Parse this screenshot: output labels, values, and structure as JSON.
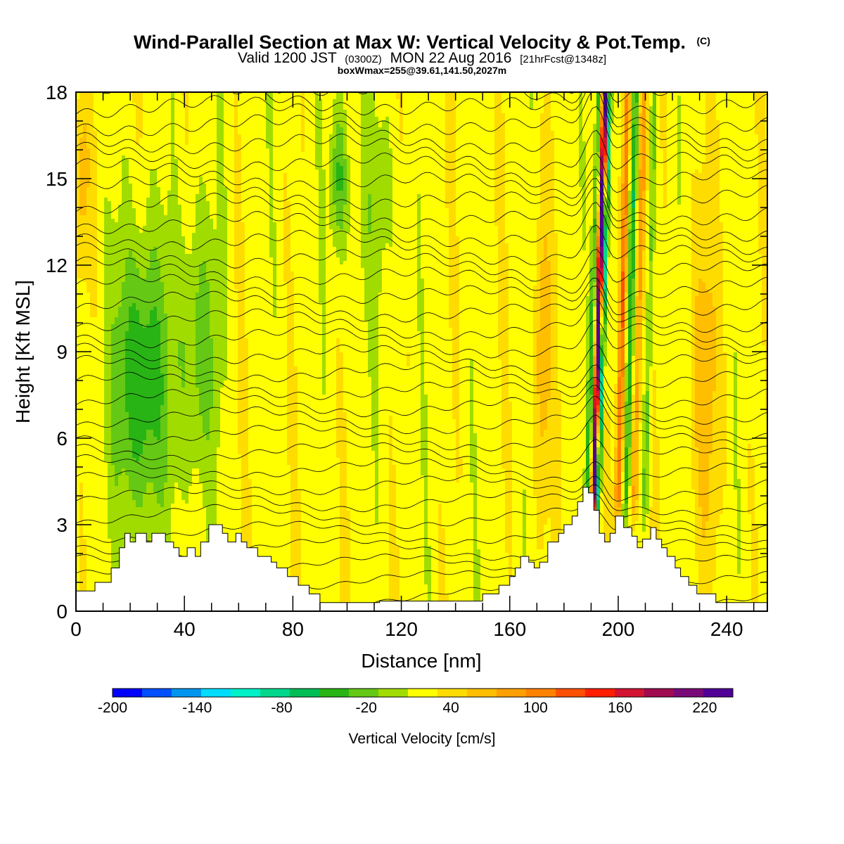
{
  "chart_data": {
    "type": "heatmap",
    "title": {
      "main": "Wind-Parallel Section at Max W: Vertical Velocity & Pot.Temp.",
      "copyright": "(C)",
      "valid_prefix": "Valid 1200 JST",
      "valid_zulu": "(0300Z)",
      "valid_date": "MON 22 Aug 2016",
      "forecast": "[21hrFcst@1348z]",
      "box": "boxWmax=255@39.61,141.50,2027m"
    },
    "xlabel": "Distance [nm]",
    "ylabel": "Height [Kft MSL]",
    "xlim": [
      0,
      255
    ],
    "ylim": [
      0,
      18
    ],
    "x_ticks": [
      "0",
      "40",
      "80",
      "120",
      "160",
      "200",
      "240"
    ],
    "x_tick_values": [
      0,
      40,
      80,
      120,
      160,
      200,
      240
    ],
    "y_ticks": [
      "0",
      "3",
      "6",
      "9",
      "12",
      "15",
      "18"
    ],
    "y_tick_values": [
      0,
      3,
      6,
      9,
      12,
      15,
      18
    ],
    "colorbar": {
      "title": "Vertical Velocity [cm/s]",
      "labels": [
        "-200",
        "-140",
        "-80",
        "-20",
        "40",
        "100",
        "160",
        "220"
      ],
      "label_values": [
        -200,
        -140,
        -80,
        -20,
        40,
        100,
        160,
        220
      ],
      "min": -200,
      "max": 220,
      "step": 20,
      "colors": [
        "#0000ff",
        "#0050ff",
        "#0096f0",
        "#00dcff",
        "#00f0c8",
        "#00d78c",
        "#00be55",
        "#28b414",
        "#64c814",
        "#a0dc00",
        "#ffff00",
        "#ffdc00",
        "#ffbe00",
        "#ffa000",
        "#ff8200",
        "#ff5000",
        "#ff1e00",
        "#d21432",
        "#a00a50",
        "#780a78",
        "#500096"
      ]
    },
    "terrain_kft": [
      [
        0,
        0.7
      ],
      [
        7,
        0.7
      ],
      [
        7,
        1.0
      ],
      [
        13,
        1.0
      ],
      [
        13,
        1.5
      ],
      [
        16,
        1.5
      ],
      [
        16,
        2.2
      ],
      [
        18,
        2.2
      ],
      [
        18,
        2.7
      ],
      [
        20,
        2.7
      ],
      [
        20,
        2.4
      ],
      [
        22,
        2.4
      ],
      [
        22,
        2.7
      ],
      [
        26,
        2.7
      ],
      [
        26,
        2.4
      ],
      [
        28,
        2.4
      ],
      [
        28,
        2.7
      ],
      [
        33,
        2.7
      ],
      [
        33,
        2.4
      ],
      [
        36,
        2.4
      ],
      [
        36,
        2.2
      ],
      [
        38,
        2.2
      ],
      [
        38,
        1.9
      ],
      [
        41,
        1.9
      ],
      [
        41,
        2.2
      ],
      [
        44,
        2.2
      ],
      [
        44,
        1.9
      ],
      [
        46,
        1.9
      ],
      [
        46,
        2.4
      ],
      [
        49,
        2.4
      ],
      [
        49,
        3.0
      ],
      [
        54,
        3.0
      ],
      [
        54,
        2.7
      ],
      [
        56,
        2.7
      ],
      [
        56,
        2.4
      ],
      [
        59,
        2.4
      ],
      [
        59,
        2.7
      ],
      [
        61,
        2.7
      ],
      [
        61,
        2.4
      ],
      [
        63,
        2.4
      ],
      [
        63,
        2.2
      ],
      [
        67,
        2.2
      ],
      [
        67,
        1.9
      ],
      [
        72,
        1.9
      ],
      [
        72,
        1.7
      ],
      [
        74,
        1.7
      ],
      [
        74,
        1.5
      ],
      [
        78,
        1.5
      ],
      [
        78,
        1.2
      ],
      [
        82,
        1.2
      ],
      [
        82,
        0.9
      ],
      [
        86,
        0.9
      ],
      [
        86,
        0.6
      ],
      [
        90,
        0.6
      ],
      [
        90,
        0.3
      ],
      [
        112,
        0.3
      ],
      [
        112,
        0.35
      ],
      [
        150,
        0.35
      ],
      [
        150,
        0.6
      ],
      [
        156,
        0.6
      ],
      [
        156,
        0.9
      ],
      [
        160,
        0.9
      ],
      [
        160,
        1.2
      ],
      [
        162,
        1.2
      ],
      [
        162,
        1.5
      ],
      [
        164,
        1.5
      ],
      [
        164,
        1.9
      ],
      [
        167,
        1.9
      ],
      [
        167,
        1.7
      ],
      [
        169,
        1.7
      ],
      [
        169,
        1.5
      ],
      [
        171,
        1.5
      ],
      [
        171,
        1.7
      ],
      [
        174,
        1.7
      ],
      [
        174,
        2.4
      ],
      [
        178,
        2.4
      ],
      [
        178,
        2.7
      ],
      [
        180,
        2.7
      ],
      [
        180,
        3.0
      ],
      [
        183,
        3.0
      ],
      [
        183,
        3.3
      ],
      [
        185,
        3.3
      ],
      [
        185,
        3.8
      ],
      [
        187,
        3.8
      ],
      [
        187,
        4.3
      ],
      [
        189,
        4.3
      ],
      [
        189,
        4.1
      ],
      [
        191,
        4.1
      ],
      [
        191,
        3.5
      ],
      [
        193,
        3.5
      ],
      [
        193,
        2.7
      ],
      [
        195,
        2.7
      ],
      [
        195,
        2.4
      ],
      [
        197,
        2.4
      ],
      [
        197,
        2.7
      ],
      [
        199,
        2.7
      ],
      [
        199,
        3.3
      ],
      [
        202,
        3.3
      ],
      [
        202,
        2.9
      ],
      [
        205,
        2.9
      ],
      [
        205,
        2.6
      ],
      [
        207,
        2.6
      ],
      [
        207,
        2.2
      ],
      [
        209,
        2.2
      ],
      [
        209,
        2.5
      ],
      [
        212,
        2.5
      ],
      [
        212,
        2.9
      ],
      [
        214,
        2.9
      ],
      [
        214,
        2.5
      ],
      [
        216,
        2.5
      ],
      [
        216,
        2.2
      ],
      [
        218,
        2.2
      ],
      [
        218,
        1.9
      ],
      [
        221,
        1.9
      ],
      [
        221,
        1.5
      ],
      [
        223,
        1.5
      ],
      [
        223,
        1.2
      ],
      [
        226,
        1.2
      ],
      [
        226,
        0.9
      ],
      [
        229,
        0.9
      ],
      [
        229,
        0.6
      ],
      [
        236,
        0.6
      ],
      [
        236,
        0.3
      ],
      [
        255,
        0.3
      ]
    ]
  }
}
